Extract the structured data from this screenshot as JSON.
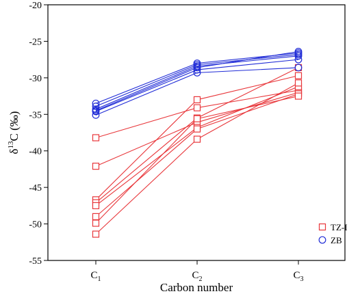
{
  "chart_data": {
    "type": "line",
    "categories": [
      {
        "base": "C",
        "sub": "1"
      },
      {
        "base": "C",
        "sub": "2"
      },
      {
        "base": "C",
        "sub": "3"
      }
    ],
    "xlabel": "Carbon number",
    "ylabel": {
      "prefix": "δ",
      "sup": "13",
      "suffix": "C (‰)"
    },
    "ylim": [
      -55,
      -20
    ],
    "yticks": [
      -55,
      -50,
      -45,
      -40,
      -35,
      -30,
      -25,
      -20
    ],
    "grid": false,
    "legend": {
      "position": "bottom-right",
      "entries": [
        {
          "label": "TZ-I",
          "marker": "square",
          "color": "#e8363a"
        },
        {
          "label": "ZB",
          "marker": "circle",
          "color": "#1f2bd6"
        }
      ]
    },
    "groups": [
      {
        "name": "TZ-I",
        "marker": "square",
        "color": "#e8363a",
        "series": [
          [
            -38.2,
            -34.1,
            -31.7
          ],
          [
            -42.1,
            -36.1,
            -32.0
          ],
          [
            -46.7,
            -33.0,
            -29.7
          ],
          [
            -47.1,
            -35.5,
            -28.6
          ],
          [
            -47.5,
            -36.8,
            -31.2
          ],
          [
            -49.0,
            -37.0,
            -32.2
          ],
          [
            -49.9,
            -35.6,
            -32.5
          ],
          [
            -51.4,
            -38.4,
            -30.7
          ]
        ]
      },
      {
        "name": "ZB",
        "marker": "circle",
        "color": "#1f2bd6",
        "series": [
          [
            -33.5,
            -28.0,
            -26.6
          ],
          [
            -33.9,
            -28.2,
            -26.8
          ],
          [
            -34.3,
            -28.4,
            -27.0
          ],
          [
            -34.5,
            -28.6,
            -26.4
          ],
          [
            -34.6,
            -28.9,
            -27.5
          ],
          [
            -35.1,
            -29.3,
            -28.6
          ]
        ]
      }
    ]
  }
}
